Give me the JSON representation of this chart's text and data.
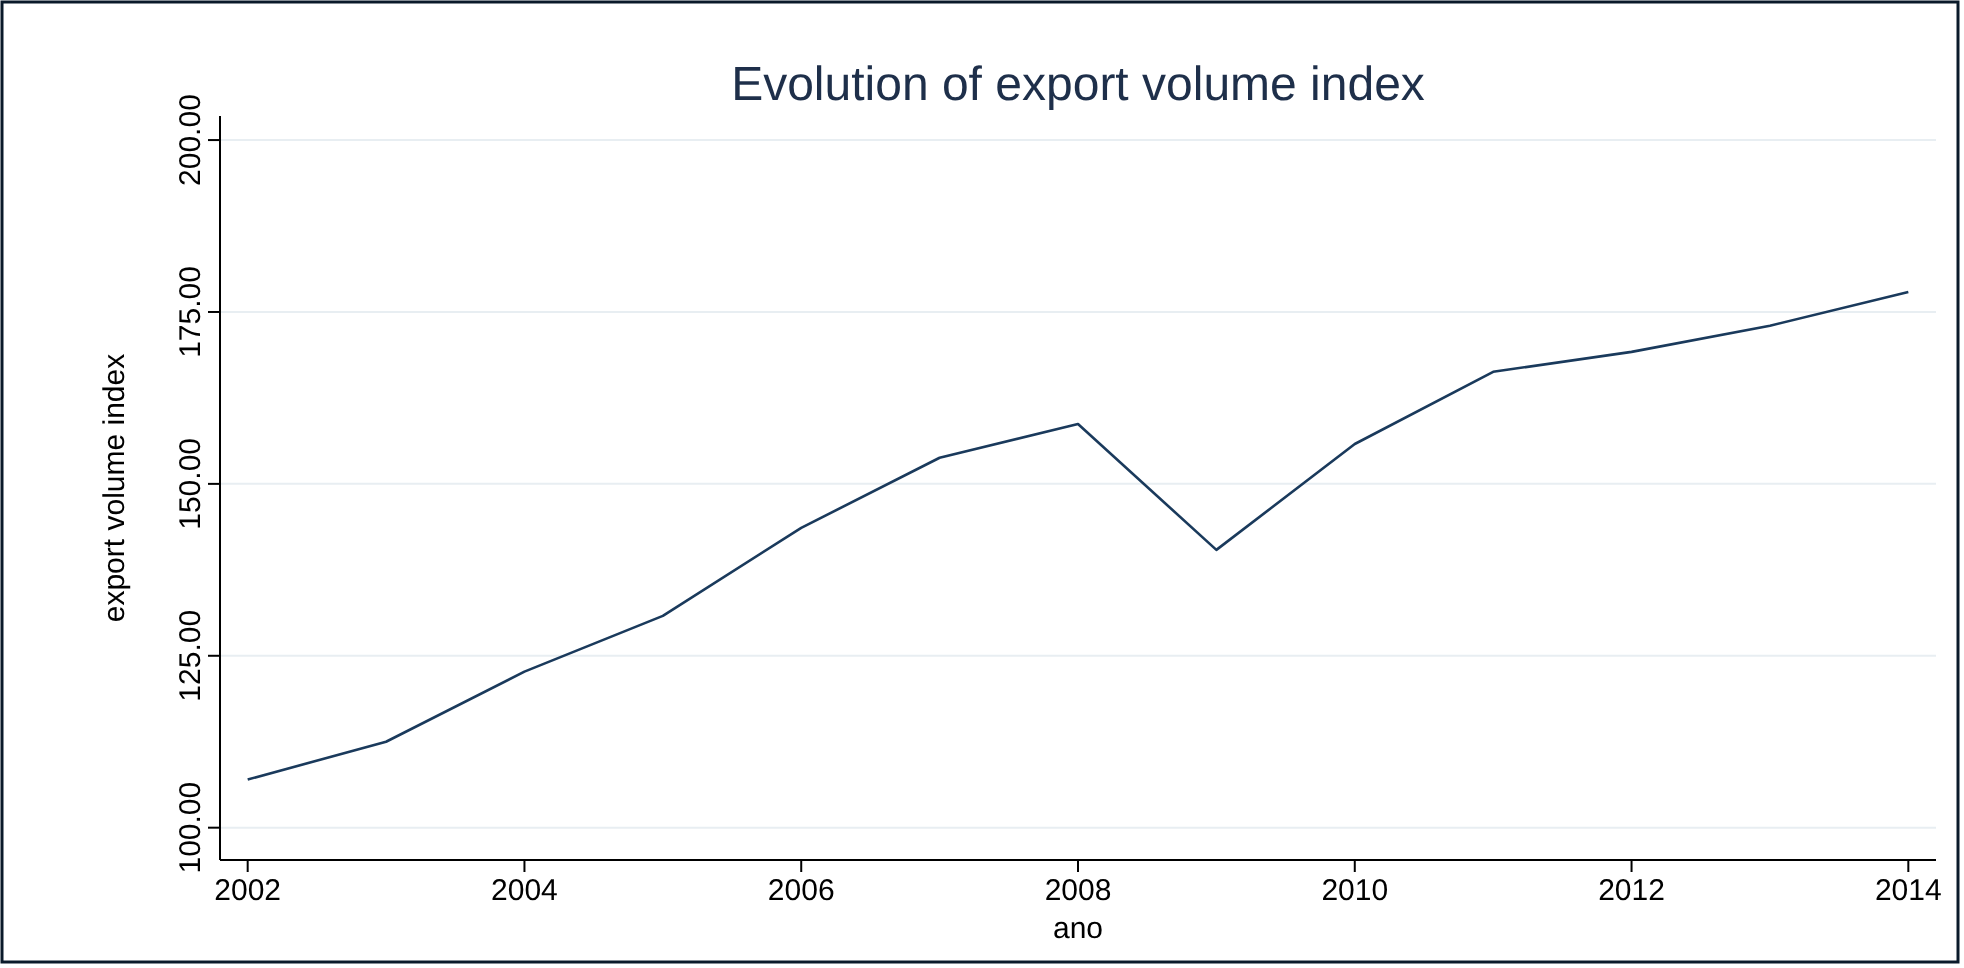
{
  "chart_data": {
    "type": "line",
    "title": "Evolution of export volume index",
    "xlabel": "ano",
    "ylabel": "export volume index",
    "x": [
      2002,
      2003,
      2004,
      2005,
      2006,
      2007,
      2008,
      2009,
      2010,
      2011,
      2012,
      2013,
      2014
    ],
    "series": [
      {
        "color": "#1a3a5c",
        "values": [
          107.0,
          112.5,
          122.7,
          130.8,
          143.6,
          153.8,
          158.7,
          140.4,
          155.8,
          166.3,
          169.2,
          173.0,
          177.9
        ]
      }
    ],
    "xlim": [
      2001.8,
      2014.2
    ],
    "xticks": [
      2002,
      2004,
      2006,
      2008,
      2010,
      2012,
      2014
    ],
    "ylim": [
      95.3,
      203.5
    ],
    "yticks": [
      {
        "value": 100,
        "label": "100.00"
      },
      {
        "value": 125,
        "label": "125.00"
      },
      {
        "value": 150,
        "label": "150.00"
      },
      {
        "value": 175,
        "label": "175.00"
      },
      {
        "value": 200,
        "label": "200.00"
      }
    ],
    "grid": "y",
    "marker": "none",
    "line_style": "solid"
  }
}
